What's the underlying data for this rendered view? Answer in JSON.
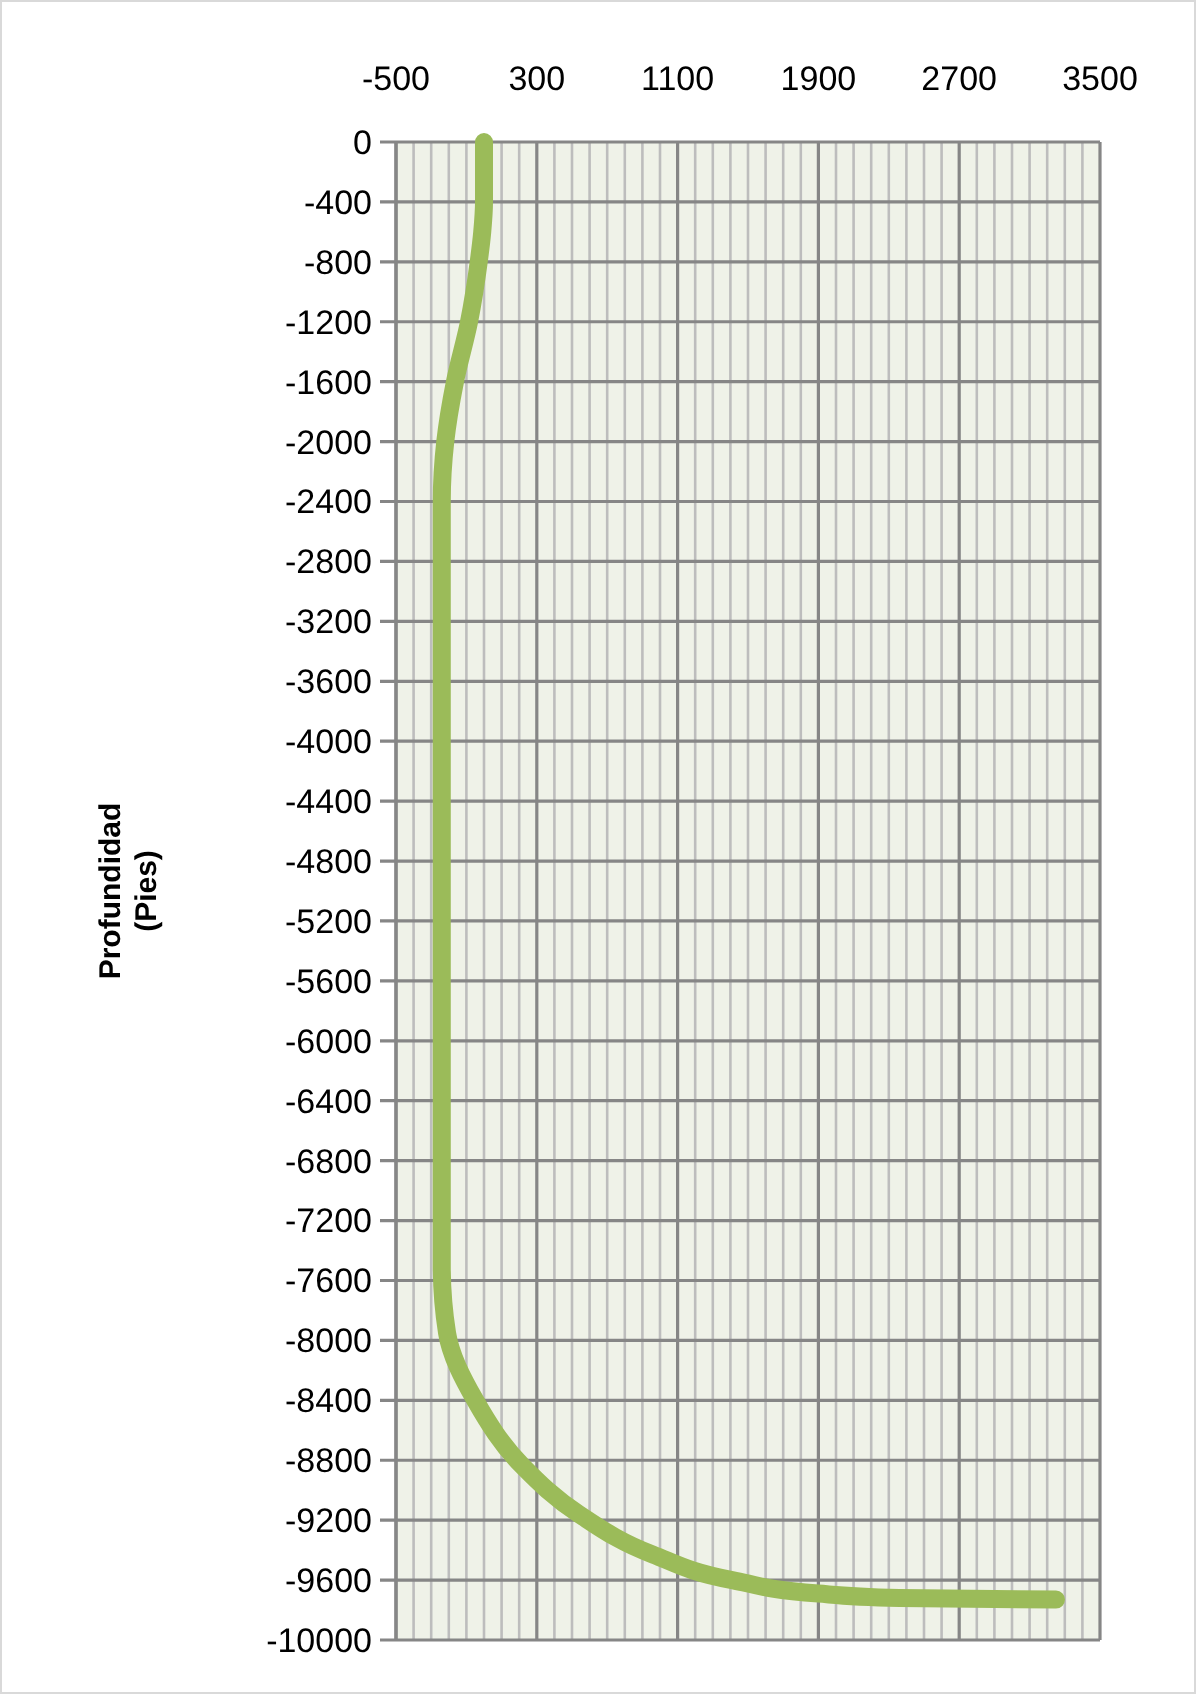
{
  "chart_data": {
    "type": "line",
    "ylabel": "Profundidad\n(Pies)",
    "xlim": [
      -500,
      3500
    ],
    "xticks": [
      -500,
      {
        "value": -400,
        "label": null
      },
      {
        "value": -300,
        "label": null
      },
      {
        "value": -200,
        "label": null
      },
      {
        "value": -100,
        "label": null
      },
      {
        "value": 0,
        "label": null
      },
      {
        "value": 100,
        "label": null
      },
      {
        "value": 200,
        "label": null
      },
      300,
      {
        "value": 400,
        "label": null
      },
      {
        "value": 500,
        "label": null
      },
      {
        "value": 600,
        "label": null
      },
      {
        "value": 700,
        "label": null
      },
      {
        "value": 800,
        "label": null
      },
      {
        "value": 900,
        "label": null
      },
      {
        "value": 1000,
        "label": null
      },
      1100,
      {
        "value": 1200,
        "label": null
      },
      {
        "value": 1300,
        "label": null
      },
      {
        "value": 1400,
        "label": null
      },
      {
        "value": 1500,
        "label": null
      },
      {
        "value": 1600,
        "label": null
      },
      {
        "value": 1700,
        "label": null
      },
      {
        "value": 1800,
        "label": null
      },
      1900,
      {
        "value": 2000,
        "label": null
      },
      {
        "value": 2100,
        "label": null
      },
      {
        "value": 2200,
        "label": null
      },
      {
        "value": 2300,
        "label": null
      },
      {
        "value": 2400,
        "label": null
      },
      {
        "value": 2500,
        "label": null
      },
      {
        "value": 2600,
        "label": null
      },
      2700,
      {
        "value": 2800,
        "label": null
      },
      {
        "value": 2900,
        "label": null
      },
      {
        "value": 3000,
        "label": null
      },
      {
        "value": 3100,
        "label": null
      },
      {
        "value": 3200,
        "label": null
      },
      {
        "value": 3300,
        "label": null
      },
      {
        "value": 3400,
        "label": null
      },
      3500
    ],
    "ylim": [
      -10000,
      0
    ],
    "yticks": [
      0,
      -400,
      -800,
      -1200,
      -1600,
      -2000,
      -2400,
      -2800,
      -3200,
      -3600,
      -4000,
      -4400,
      -4800,
      -5200,
      -5600,
      -6000,
      -6400,
      -6800,
      -7200,
      -7600,
      -8000,
      -8400,
      -8800,
      -9200,
      -9600,
      -10000
    ],
    "grid": true,
    "line_style": "solid",
    "series": [
      {
        "color": "#9bbb59",
        "x": [
          0,
          0,
          -10,
          -30,
          -85,
          -165,
          -220,
          -240,
          -240,
          -240,
          -240,
          -210,
          -50,
          220,
          540,
          960,
          1410,
          1900,
          2360,
          3250
        ],
        "values": [
          0,
          -400,
          -600,
          -800,
          -1200,
          -1600,
          -2000,
          -2400,
          -4000,
          -6000,
          -7500,
          -7950,
          -8400,
          -8840,
          -9160,
          -9430,
          -9600,
          -9690,
          -9720,
          -9730
        ]
      }
    ]
  }
}
